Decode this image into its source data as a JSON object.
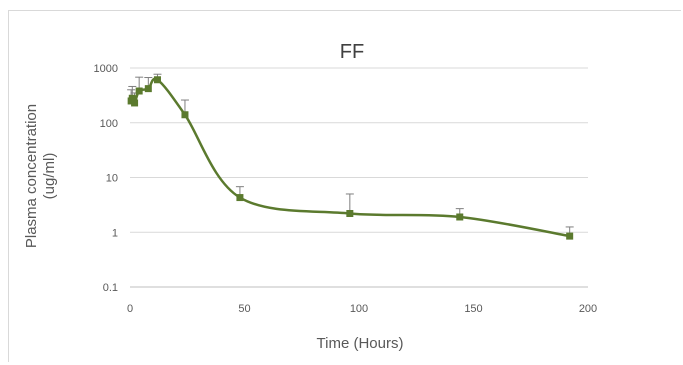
{
  "chart_data": {
    "type": "line",
    "title": "FF",
    "xlabel": "Time (Hours)",
    "ylabel_line1": "Plasma concentration",
    "ylabel_line2": "(ug/ml)",
    "xlim": [
      0,
      200
    ],
    "ylim": [
      0.1,
      1000
    ],
    "yscale": "log",
    "x_ticks": [
      0,
      50,
      100,
      150,
      200
    ],
    "y_ticks": [
      0.1,
      1,
      10,
      100,
      1000
    ],
    "x_tick_labels": [
      "0",
      "50",
      "100",
      "150",
      "200"
    ],
    "y_tick_labels": [
      "0.1",
      "1",
      "10",
      "100",
      "1000"
    ],
    "grid": "horizontal",
    "legend": "none",
    "series": [
      {
        "color": "#5b7a2e",
        "points": [
          {
            "x": 0.5,
            "y": 250,
            "err_up": 150
          },
          {
            "x": 1,
            "y": 280,
            "err_up": 180
          },
          {
            "x": 2,
            "y": 230,
            "err_up": 120
          },
          {
            "x": 4,
            "y": 380,
            "err_up": 300
          },
          {
            "x": 8,
            "y": 420,
            "err_up": 250
          },
          {
            "x": 12,
            "y": 610,
            "err_up": 160
          },
          {
            "x": 24,
            "y": 140,
            "err_up": 120
          },
          {
            "x": 48,
            "y": 4.3,
            "err_up": 2.5
          },
          {
            "x": 96,
            "y": 2.2,
            "err_up": 2.8
          },
          {
            "x": 144,
            "y": 1.9,
            "err_up": 0.8
          },
          {
            "x": 192,
            "y": 0.85,
            "err_up": 0.4
          }
        ]
      }
    ]
  }
}
